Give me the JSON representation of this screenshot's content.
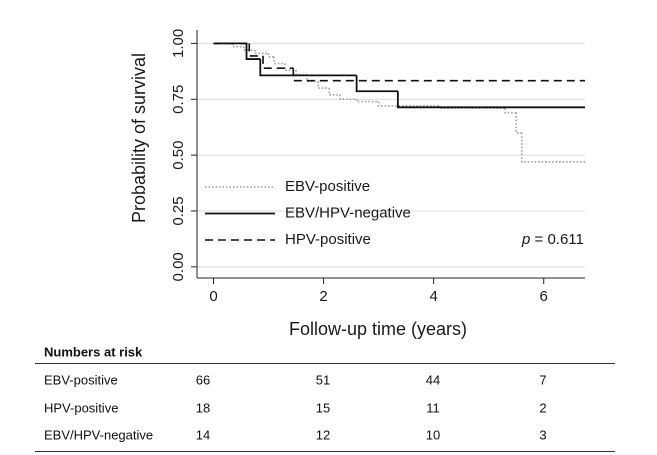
{
  "chart_data": {
    "type": "step",
    "ylabel": "Probability of survival",
    "xlabel": "Follow-up time (years)",
    "xlim": [
      -0.3,
      6.75
    ],
    "ylim": [
      -0.05,
      1.06
    ],
    "xticks": [
      0,
      2,
      4,
      6
    ],
    "yticks": [
      {
        "value": 0,
        "label": "0.00"
      },
      {
        "value": 0.25,
        "label": "0.25"
      },
      {
        "value": 0.5,
        "label": "0.50"
      },
      {
        "value": 0.75,
        "label": "0.75"
      },
      {
        "value": 1,
        "label": "1.00"
      }
    ],
    "grid": true,
    "legend": "lower left",
    "annotation": [
      "p",
      "= 0.611"
    ],
    "series": [
      {
        "name": "EBV-positive",
        "color": "#9a9a9a",
        "style": "dotted",
        "x": [
          0,
          0.35,
          0.55,
          0.75,
          1.0,
          1.1,
          1.3,
          1.5,
          1.7,
          1.9,
          2.1,
          2.3,
          2.6,
          3.0,
          4.1,
          5.3,
          5.5,
          5.6,
          6.75
        ],
        "values": [
          1.0,
          0.985,
          0.97,
          0.955,
          0.94,
          0.91,
          0.88,
          0.86,
          0.83,
          0.8,
          0.77,
          0.75,
          0.74,
          0.72,
          0.71,
          0.69,
          0.6,
          0.47,
          0.47
        ]
      },
      {
        "name": "EBV/HPV-negative",
        "color": "#111111",
        "style": "solid",
        "x": [
          0,
          0.6,
          0.85,
          2.6,
          3.35,
          6.75
        ],
        "values": [
          1.0,
          0.93,
          0.857,
          0.786,
          0.714,
          0.714
        ]
      },
      {
        "name": "HPV-positive",
        "color": "#111111",
        "style": "dashed",
        "x": [
          0,
          0.65,
          0.9,
          1.45,
          6.75
        ],
        "values": [
          1.0,
          0.944,
          0.889,
          0.833,
          0.833
        ]
      }
    ]
  },
  "risk_table": {
    "title": "Numbers at risk",
    "rows": [
      [
        "EBV-positive",
        66,
        51,
        44,
        7
      ],
      [
        "HPV-positive",
        18,
        15,
        11,
        2
      ],
      [
        "EBV/HPV-negative",
        14,
        12,
        10,
        3
      ]
    ]
  }
}
